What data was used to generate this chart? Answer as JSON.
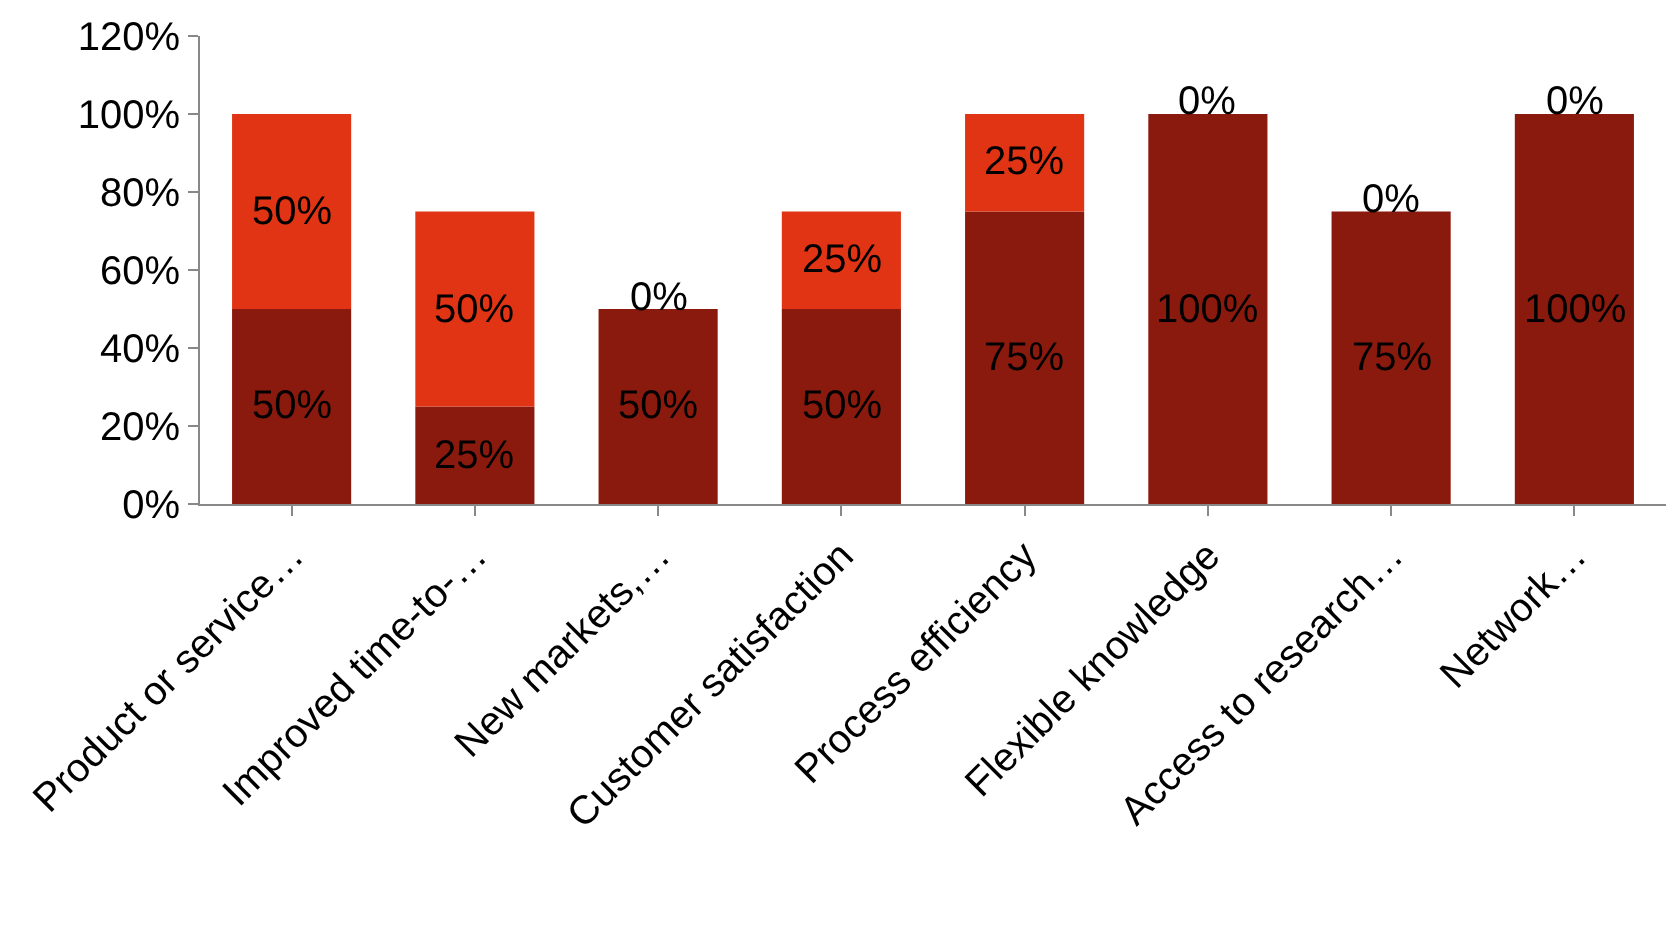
{
  "chart_data": {
    "type": "bar",
    "stacked": true,
    "categories": [
      "Product or service…",
      "Improved time-to-…",
      "New markets,…",
      "Customer satisfaction",
      "Process efficiency",
      "Flexible knowledge",
      "Access to research…",
      "Network…"
    ],
    "series": [
      {
        "color": "#8b1a0e",
        "values": [
          50,
          25,
          50,
          50,
          75,
          100,
          75,
          100
        ],
        "value_labels": [
          "50%",
          "25%",
          "50%",
          "50%",
          "75%",
          "100%",
          "75%",
          "100%"
        ]
      },
      {
        "color": "#e03414",
        "values": [
          50,
          50,
          0,
          25,
          25,
          0,
          0,
          0
        ],
        "value_labels": [
          "50%",
          "50%",
          "0%",
          "25%",
          "25%",
          "0%",
          "0%",
          "0%"
        ]
      }
    ],
    "ylim": [
      0,
      120
    ],
    "yticks": [
      {
        "value": 0,
        "label": "0%"
      },
      {
        "value": 20,
        "label": "20%"
      },
      {
        "value": 40,
        "label": "40%"
      },
      {
        "value": 60,
        "label": "60%"
      },
      {
        "value": 80,
        "label": "80%"
      },
      {
        "value": 100,
        "label": "100%"
      },
      {
        "value": 120,
        "label": "120%"
      }
    ],
    "legend": false
  }
}
